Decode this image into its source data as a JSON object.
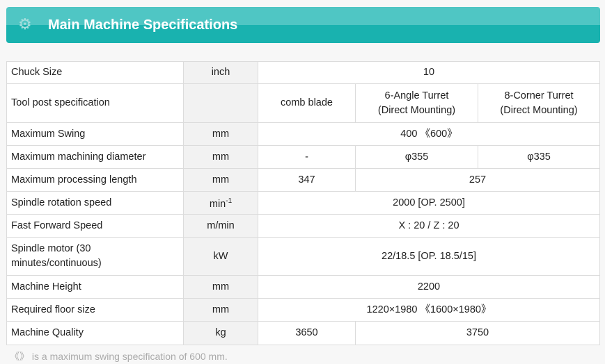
{
  "header": {
    "title": "Main Machine Specifications",
    "icon": "gears-icon"
  },
  "rows": [
    {
      "label": "Chuck Size",
      "unit": "inch",
      "values": [
        "10"
      ]
    },
    {
      "label": "Tool post specification",
      "unit": "",
      "values": [
        "comb blade",
        "6-Angle Turret (Direct Mounting)",
        "8-Corner Turret (Direct Mounting)"
      ]
    },
    {
      "label": "Maximum Swing",
      "unit": "mm",
      "values": [
        "400 《600》"
      ]
    },
    {
      "label": "Maximum machining diameter",
      "unit": "mm",
      "values": [
        "-",
        "φ355",
        "φ335"
      ]
    },
    {
      "label": "Maximum processing length",
      "unit": "mm",
      "values": [
        "347",
        "257"
      ]
    },
    {
      "label": "Spindle rotation speed",
      "unit": "min",
      "unit_sup": "-1",
      "values": [
        "2000 [OP. 2500]"
      ]
    },
    {
      "label": "Fast Forward Speed",
      "unit": "m/min",
      "values": [
        "X : 20 / Z : 20"
      ]
    },
    {
      "label": "Spindle motor (30 minutes/continuous)",
      "unit": "kW",
      "values": [
        "22/18.5 [OP. 18.5/15]"
      ]
    },
    {
      "label": "Machine Height",
      "unit": "mm",
      "values": [
        "2200"
      ]
    },
    {
      "label": "Required floor size",
      "unit": "mm",
      "values": [
        "1220×1980 《1600×1980》"
      ]
    },
    {
      "label": "Machine Quality",
      "unit": "kg",
      "values": [
        "3650",
        "3750"
      ]
    }
  ],
  "note": "《》 is a maximum swing specification of 600 mm."
}
